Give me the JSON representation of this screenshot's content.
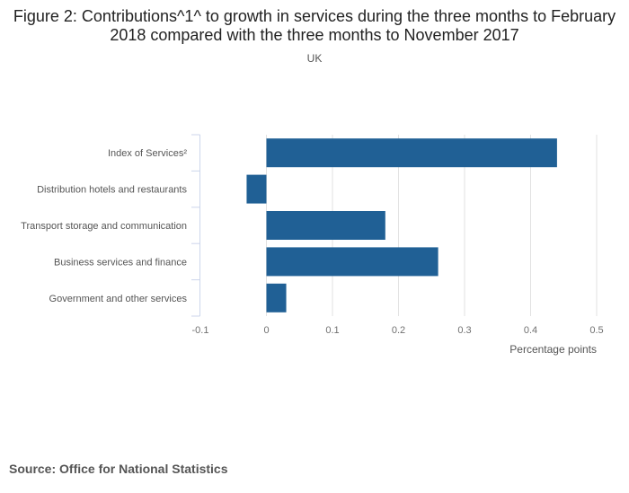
{
  "chart_data": {
    "type": "bar",
    "orientation": "horizontal",
    "title": "Figure 2: Contributions^1^ to growth in services during the three months to February 2018 compared with the three months to November 2017",
    "subtitle": "UK",
    "xlabel": "Percentage points",
    "ylabel": "",
    "categories": [
      "Index of Services²",
      "Distribution hotels and restaurants",
      "Transport storage and communication",
      "Business services and finance",
      "Government and other services"
    ],
    "values": [
      0.44,
      -0.03,
      0.18,
      0.26,
      0.03
    ],
    "xlim": [
      -0.1,
      0.5
    ],
    "xticks": [
      "-0.1",
      "0",
      "0.1",
      "0.2",
      "0.3",
      "0.4",
      "0.5"
    ],
    "grid": true,
    "legend": "none",
    "bar_color": "#206095"
  },
  "source": "Source: Office for National Statistics"
}
